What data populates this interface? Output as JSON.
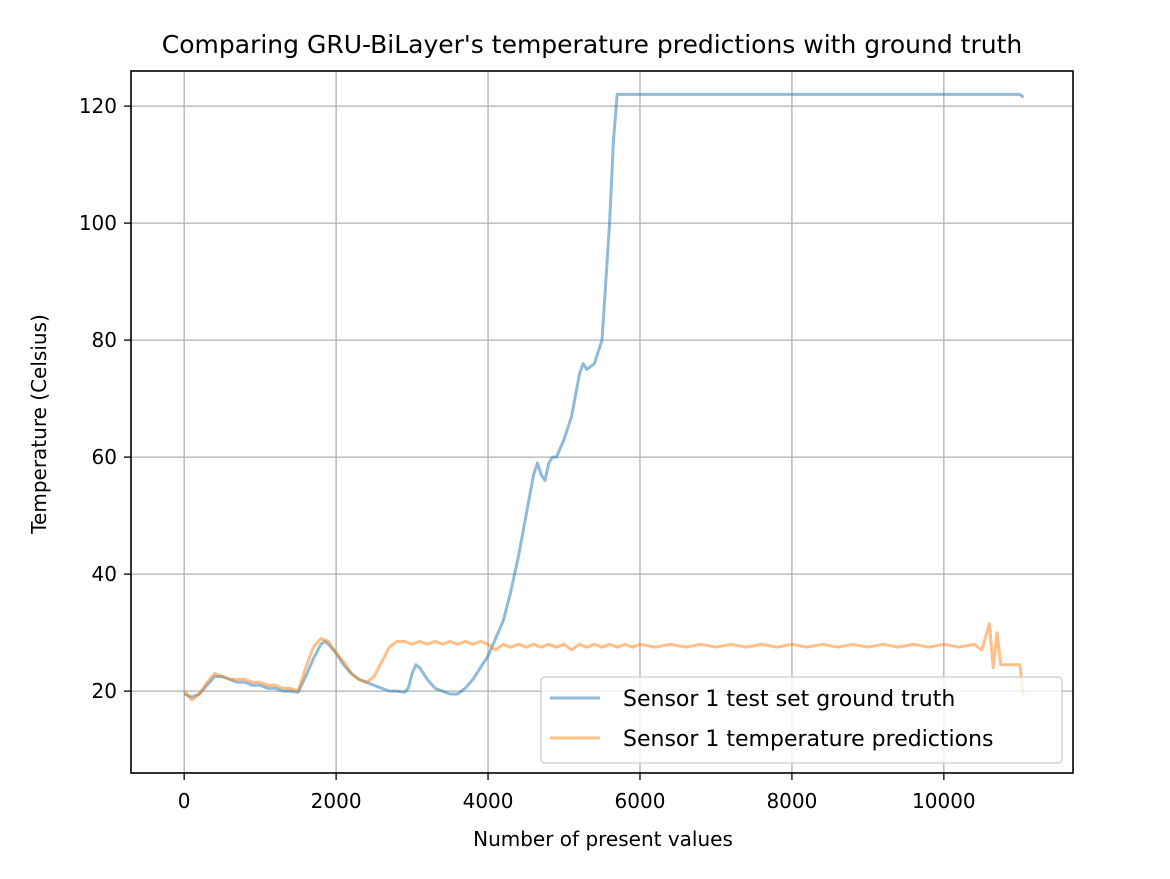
{
  "chart_data": {
    "type": "line",
    "title": "Comparing GRU-BiLayer's temperature predictions with ground truth",
    "xlabel": "Number of present values",
    "ylabel": "Temperature (Celsius)",
    "xlim": [
      -700,
      11700
    ],
    "ylim": [
      6,
      126
    ],
    "xticks": [
      0,
      2000,
      4000,
      6000,
      8000,
      10000
    ],
    "xtick_labels": [
      "0",
      "2000",
      "4000",
      "6000",
      "8000",
      "10000"
    ],
    "yticks": [
      20,
      40,
      60,
      80,
      100,
      120
    ],
    "ytick_labels": [
      "20",
      "40",
      "60",
      "80",
      "100",
      "120"
    ],
    "grid": true,
    "legend_position": "lower-right",
    "series": [
      {
        "name": "Sensor 1 test set ground truth",
        "color": "#1f77b4",
        "opacity": 0.5,
        "x": [
          0,
          100,
          200,
          300,
          400,
          500,
          600,
          700,
          800,
          900,
          1000,
          1100,
          1200,
          1300,
          1400,
          1500,
          1600,
          1700,
          1800,
          1850,
          1900,
          2000,
          2100,
          2200,
          2300,
          2400,
          2500,
          2600,
          2700,
          2800,
          2900,
          2950,
          3000,
          3050,
          3100,
          3200,
          3300,
          3400,
          3500,
          3600,
          3700,
          3800,
          3900,
          4000,
          4100,
          4200,
          4300,
          4400,
          4500,
          4600,
          4650,
          4700,
          4750,
          4800,
          4850,
          4900,
          5000,
          5100,
          5200,
          5250,
          5300,
          5400,
          5500,
          5600,
          5650,
          5700,
          6000,
          7000,
          8000,
          9000,
          10000,
          11000,
          11050
        ],
        "y": [
          19.5,
          19,
          19.5,
          21,
          22.5,
          22.5,
          22,
          21.5,
          21.5,
          21,
          21,
          20.5,
          20.5,
          20,
          20,
          19.8,
          22.5,
          25.5,
          28,
          28.5,
          28,
          26.5,
          24.5,
          23,
          22,
          21.5,
          21,
          20.5,
          20,
          20,
          19.8,
          20.5,
          23,
          24.5,
          24,
          22,
          20.5,
          20,
          19.5,
          19.5,
          20.5,
          22,
          24,
          26,
          29,
          32,
          37,
          43,
          50,
          57,
          59,
          57,
          56,
          59,
          60,
          60,
          63,
          67,
          74,
          76,
          75,
          76,
          80,
          100,
          114,
          122,
          122,
          122,
          122,
          122,
          122,
          122,
          121.5
        ]
      },
      {
        "name": "Sensor 1 temperature predictions",
        "color": "#ff7f0e",
        "opacity": 0.5,
        "x": [
          0,
          100,
          200,
          300,
          400,
          500,
          600,
          700,
          800,
          900,
          1000,
          1100,
          1200,
          1300,
          1400,
          1500,
          1600,
          1700,
          1800,
          1900,
          2000,
          2100,
          2200,
          2300,
          2400,
          2500,
          2600,
          2700,
          2800,
          2900,
          3000,
          3100,
          3200,
          3300,
          3400,
          3500,
          3600,
          3700,
          3800,
          3900,
          4000,
          4100,
          4200,
          4300,
          4400,
          4500,
          4600,
          4700,
          4800,
          4900,
          5000,
          5100,
          5200,
          5300,
          5400,
          5500,
          5600,
          5700,
          5800,
          5900,
          6000,
          6200,
          6400,
          6600,
          6800,
          7000,
          7200,
          7400,
          7600,
          7800,
          8000,
          8200,
          8400,
          8600,
          8800,
          9000,
          9200,
          9400,
          9600,
          9800,
          10000,
          10200,
          10400,
          10500,
          10600,
          10650,
          10700,
          10750,
          10800,
          11000,
          11050
        ],
        "y": [
          20,
          18.5,
          19.5,
          21.5,
          23,
          22.5,
          22,
          22,
          22,
          21.5,
          21.5,
          21,
          21,
          20.5,
          20.5,
          20,
          24,
          27.5,
          29,
          28.5,
          26.5,
          25,
          23,
          22,
          21.5,
          22.5,
          25,
          27.5,
          28.5,
          28.5,
          28,
          28.5,
          28,
          28.5,
          28,
          28.5,
          28,
          28.5,
          28,
          28.5,
          28,
          27,
          28,
          27.5,
          28,
          27.5,
          28,
          27.5,
          28,
          27.5,
          28,
          27,
          28,
          27.5,
          28,
          27.5,
          28,
          27.5,
          28,
          27.5,
          28,
          27.5,
          28,
          27.5,
          28,
          27.5,
          28,
          27.5,
          28,
          27.5,
          28,
          27.5,
          28,
          27.5,
          28,
          27.5,
          28,
          27.5,
          28,
          27.5,
          28,
          27.5,
          28,
          27,
          31.5,
          24,
          30,
          24.5,
          24.5,
          24.5,
          19
        ]
      }
    ]
  }
}
